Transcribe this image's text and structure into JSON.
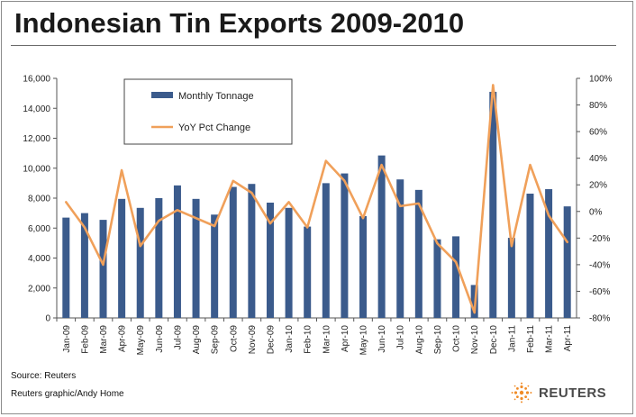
{
  "title": "Indonesian Tin Exports 2009-2010",
  "footer": {
    "source": "Source: Reuters",
    "credit": "Reuters graphic/Andy Home",
    "logo_text": "REUTERS"
  },
  "colors": {
    "bar": "#3b5b8c",
    "line": "#f0a05a",
    "axis": "#555555",
    "grid": "#c8c8c8"
  },
  "chart_data": {
    "type": "bar",
    "categories": [
      "Jan-09",
      "Feb-09",
      "Mar-09",
      "Apr-09",
      "May-09",
      "Jun-09",
      "Jul-09",
      "Aug-09",
      "Sep-09",
      "Oct-09",
      "Nov-09",
      "Dec-09",
      "Jan-10",
      "Feb-10",
      "Mar-10",
      "Apr-10",
      "May-10",
      "Jun-10",
      "Jul-10",
      "Aug-10",
      "Sep-10",
      "Oct-10",
      "Nov-10",
      "Dec-10",
      "Jan-11",
      "Feb-11",
      "Mar-11",
      "Apr-11"
    ],
    "series": [
      {
        "name": "Monthly Tonnage",
        "type": "bar",
        "axis": "left",
        "values": [
          6700,
          7000,
          6550,
          7950,
          7350,
          8000,
          8850,
          7950,
          6900,
          8750,
          8950,
          7700,
          7350,
          6100,
          9000,
          9650,
          6800,
          10850,
          9250,
          8550,
          5250,
          5450,
          2200,
          15100,
          5350,
          8300,
          8600,
          7450
        ]
      },
      {
        "name": "YoY Pct Change",
        "type": "line",
        "axis": "right",
        "values": [
          7,
          -12,
          -40,
          31,
          -26,
          -7,
          1,
          -5,
          -11,
          23,
          14,
          -9,
          7,
          -12,
          38,
          23,
          -5,
          35,
          4,
          6,
          -24,
          -38,
          -76,
          95,
          -26,
          35,
          -3,
          -23
        ]
      }
    ],
    "y_left": {
      "min": 0,
      "max": 16000,
      "ticks": [
        "0",
        "2,000",
        "4,000",
        "6,000",
        "8,000",
        "10,000",
        "12,000",
        "14,000",
        "16,000"
      ]
    },
    "y_right": {
      "min": -80,
      "max": 100,
      "ticks": [
        "-80%",
        "-60%",
        "-40%",
        "-20%",
        "0%",
        "20%",
        "40%",
        "60%",
        "80%",
        "100%"
      ]
    },
    "legend": {
      "position": "top-left",
      "labels": [
        "Monthly Tonnage",
        "YoY Pct Change"
      ]
    },
    "grid": false
  }
}
